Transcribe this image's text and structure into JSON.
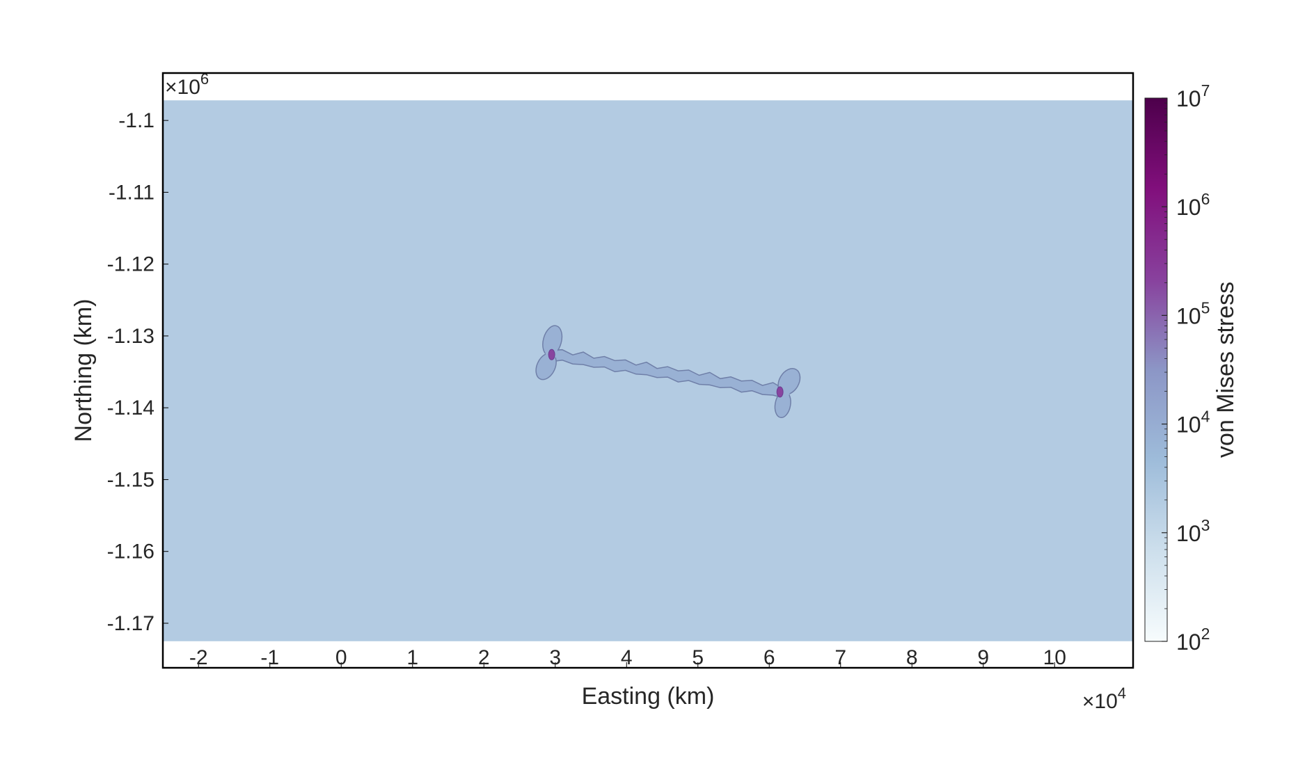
{
  "chart_data": {
    "type": "heatmap",
    "title": "",
    "xlabel": "Easting (km)",
    "ylabel": "Northing (km)",
    "x_multiplier_prefix": "×10",
    "x_multiplier_exp": "4",
    "y_multiplier_prefix": "×10",
    "y_multiplier_exp": "6",
    "xlim": [
      -2.5,
      11.1
    ],
    "ylim": [
      -1.1762,
      -1.0934
    ],
    "data_extent": {
      "x": [
        -2.5,
        11.1
      ],
      "y": [
        -1.1725,
        -1.0972
      ]
    },
    "x_ticks": [
      -2,
      -1,
      0,
      1,
      2,
      3,
      4,
      5,
      6,
      7,
      8,
      9,
      10
    ],
    "x_tick_labels": [
      "-2",
      "-1",
      "0",
      "1",
      "2",
      "3",
      "4",
      "5",
      "6",
      "7",
      "8",
      "9",
      "10"
    ],
    "y_ticks": [
      -1.1,
      -1.11,
      -1.12,
      -1.13,
      -1.14,
      -1.15,
      -1.16,
      -1.17
    ],
    "y_tick_labels": [
      "-1.1",
      "-1.11",
      "-1.12",
      "-1.13",
      "-1.14",
      "-1.15",
      "-1.16",
      "-1.17"
    ],
    "background_value": 2000,
    "features": [
      {
        "label": "fault-trace",
        "value": 8000,
        "from": [
          2.95,
          -1.1326
        ],
        "to": [
          6.2,
          -1.1378
        ]
      },
      {
        "label": "west-lobe",
        "value": 8000,
        "center": [
          2.95,
          -1.1323
        ]
      },
      {
        "label": "east-lobe",
        "value": 8000,
        "center": [
          6.2,
          -1.1378
        ]
      },
      {
        "label": "west-peak",
        "value": 200000,
        "center": [
          2.95,
          -1.1326
        ]
      },
      {
        "label": "east-peak",
        "value": 200000,
        "center": [
          6.15,
          -1.1378
        ]
      }
    ],
    "grid": false,
    "colorbar": {
      "label": "von Mises stress",
      "scale": "log",
      "range": [
        100,
        10000000
      ],
      "ticks": [
        {
          "value": 100,
          "base": "10",
          "exp": "2"
        },
        {
          "value": 1000,
          "base": "10",
          "exp": "3"
        },
        {
          "value": 10000,
          "base": "10",
          "exp": "4"
        },
        {
          "value": 100000,
          "base": "10",
          "exp": "5"
        },
        {
          "value": 1000000,
          "base": "10",
          "exp": "6"
        },
        {
          "value": 10000000,
          "base": "10",
          "exp": "7"
        }
      ],
      "colors": [
        "#f7fcfd",
        "#cddfec",
        "#9ebcda",
        "#8c96c6",
        "#88419d",
        "#810f7c",
        "#4d004b"
      ]
    }
  }
}
